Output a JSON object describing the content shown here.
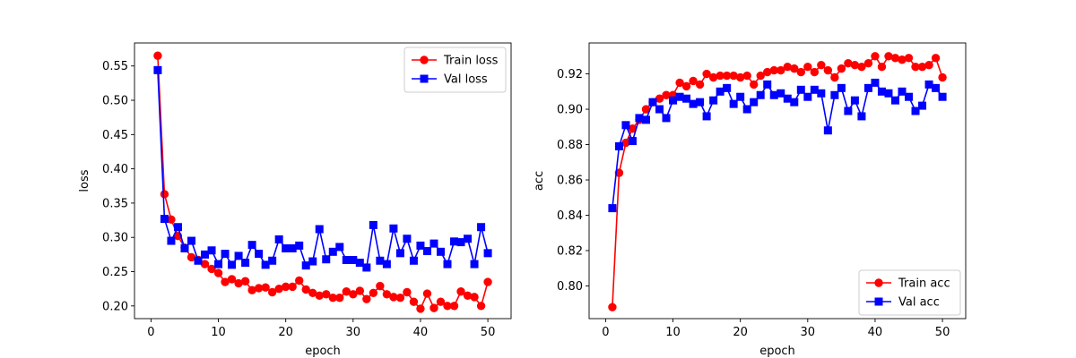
{
  "chart_data": [
    {
      "type": "line",
      "xlabel": "epoch",
      "ylabel": "loss",
      "xlim": [
        -2.45,
        53.45
      ],
      "ylim": [
        0.1815,
        0.5836
      ],
      "xticks": [
        "0",
        "10",
        "20",
        "30",
        "40",
        "50"
      ],
      "yticks": [
        "0.20",
        "0.25",
        "0.30",
        "0.35",
        "0.40",
        "0.45",
        "0.50",
        "0.55"
      ],
      "grid": false,
      "legend_position": "top-right",
      "x": [
        1,
        2,
        3,
        4,
        5,
        6,
        7,
        8,
        9,
        10,
        11,
        12,
        13,
        14,
        15,
        16,
        17,
        18,
        19,
        20,
        21,
        22,
        23,
        24,
        25,
        26,
        27,
        28,
        29,
        30,
        31,
        32,
        33,
        34,
        35,
        36,
        37,
        38,
        39,
        40,
        41,
        42,
        43,
        44,
        45,
        46,
        47,
        48,
        49,
        50
      ],
      "series": [
        {
          "name": "Train loss",
          "color": "#ff0000",
          "marker": "circle",
          "values": [
            0.565,
            0.363,
            0.326,
            0.302,
            0.285,
            0.271,
            0.267,
            0.261,
            0.254,
            0.248,
            0.235,
            0.239,
            0.233,
            0.236,
            0.223,
            0.226,
            0.227,
            0.22,
            0.225,
            0.228,
            0.228,
            0.237,
            0.224,
            0.219,
            0.215,
            0.217,
            0.212,
            0.212,
            0.221,
            0.217,
            0.222,
            0.21,
            0.219,
            0.229,
            0.217,
            0.213,
            0.212,
            0.22,
            0.206,
            0.196,
            0.218,
            0.197,
            0.206,
            0.2,
            0.2,
            0.221,
            0.215,
            0.213,
            0.2,
            0.235
          ]
        },
        {
          "name": "Val loss",
          "color": "#0000ff",
          "marker": "square",
          "values": [
            0.544,
            0.327,
            0.295,
            0.315,
            0.284,
            0.295,
            0.266,
            0.275,
            0.281,
            0.261,
            0.276,
            0.26,
            0.273,
            0.263,
            0.289,
            0.276,
            0.26,
            0.266,
            0.297,
            0.284,
            0.284,
            0.288,
            0.259,
            0.265,
            0.312,
            0.268,
            0.279,
            0.286,
            0.267,
            0.267,
            0.263,
            0.256,
            0.318,
            0.266,
            0.261,
            0.313,
            0.277,
            0.298,
            0.266,
            0.288,
            0.28,
            0.291,
            0.279,
            0.261,
            0.294,
            0.293,
            0.298,
            0.261,
            0.315,
            0.277
          ]
        }
      ]
    },
    {
      "type": "line",
      "xlabel": "epoch",
      "ylabel": "acc",
      "xlim": [
        -2.45,
        53.45
      ],
      "ylim": [
        0.7815,
        0.9375
      ],
      "xticks": [
        "0",
        "10",
        "20",
        "30",
        "40",
        "50"
      ],
      "yticks": [
        "0.80",
        "0.82",
        "0.84",
        "0.86",
        "0.88",
        "0.90",
        "0.92"
      ],
      "grid": false,
      "legend_position": "bottom-right",
      "x": [
        1,
        2,
        3,
        4,
        5,
        6,
        7,
        8,
        9,
        10,
        11,
        12,
        13,
        14,
        15,
        16,
        17,
        18,
        19,
        20,
        21,
        22,
        23,
        24,
        25,
        26,
        27,
        28,
        29,
        30,
        31,
        32,
        33,
        34,
        35,
        36,
        37,
        38,
        39,
        40,
        41,
        42,
        43,
        44,
        45,
        46,
        47,
        48,
        49,
        50
      ],
      "series": [
        {
          "name": "Train acc",
          "color": "#ff0000",
          "marker": "circle",
          "values": [
            0.788,
            0.864,
            0.881,
            0.889,
            0.894,
            0.9,
            0.904,
            0.906,
            0.908,
            0.908,
            0.915,
            0.913,
            0.916,
            0.914,
            0.92,
            0.918,
            0.919,
            0.919,
            0.919,
            0.918,
            0.919,
            0.914,
            0.919,
            0.921,
            0.922,
            0.922,
            0.924,
            0.923,
            0.921,
            0.924,
            0.921,
            0.925,
            0.922,
            0.918,
            0.923,
            0.926,
            0.925,
            0.924,
            0.926,
            0.93,
            0.924,
            0.93,
            0.929,
            0.928,
            0.929,
            0.924,
            0.924,
            0.925,
            0.929,
            0.918
          ]
        },
        {
          "name": "Val acc",
          "color": "#0000ff",
          "marker": "square",
          "values": [
            0.844,
            0.879,
            0.891,
            0.882,
            0.895,
            0.894,
            0.904,
            0.9,
            0.895,
            0.905,
            0.907,
            0.906,
            0.903,
            0.904,
            0.896,
            0.905,
            0.91,
            0.912,
            0.903,
            0.907,
            0.9,
            0.904,
            0.908,
            0.914,
            0.908,
            0.909,
            0.906,
            0.904,
            0.911,
            0.907,
            0.911,
            0.909,
            0.888,
            0.908,
            0.912,
            0.899,
            0.905,
            0.896,
            0.912,
            0.915,
            0.91,
            0.909,
            0.905,
            0.91,
            0.907,
            0.899,
            0.902,
            0.914,
            0.912,
            0.907
          ]
        }
      ]
    }
  ]
}
